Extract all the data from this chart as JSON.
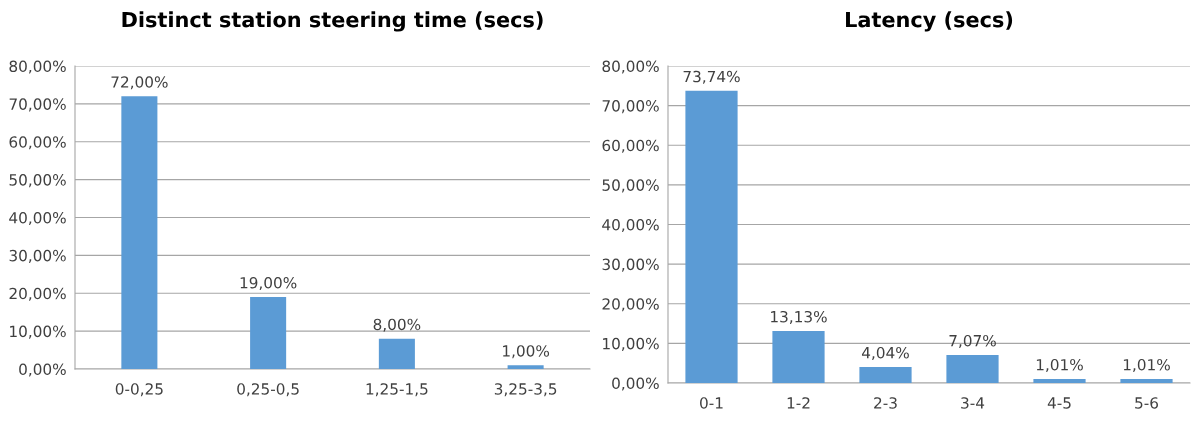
{
  "chart_data": [
    {
      "type": "bar",
      "title": "Distinct station steering time (secs)",
      "categories": [
        "0-0,25",
        "0,25-0,5",
        "1,25-1,5",
        "3,25-3,5"
      ],
      "values": [
        72,
        19,
        8,
        1
      ],
      "value_labels": [
        "72,00%",
        "19,00%",
        "8,00%",
        "1,00%"
      ],
      "color": "#5b9bd5",
      "ylim": [
        0,
        80
      ],
      "yticks": [
        {
          "value": 0,
          "label": "0,00%"
        },
        {
          "value": 10,
          "label": "10,00%"
        },
        {
          "value": 20,
          "label": "20,00%"
        },
        {
          "value": 30,
          "label": "30,00%"
        },
        {
          "value": 40,
          "label": "40,00%"
        },
        {
          "value": 50,
          "label": "50,00%"
        },
        {
          "value": 60,
          "label": "60,00%"
        },
        {
          "value": 70,
          "label": "70,00%"
        },
        {
          "value": 80,
          "label": "80,00%"
        }
      ],
      "grid": "y",
      "legend": false
    },
    {
      "type": "bar",
      "title": "Latency (secs)",
      "categories": [
        "0-1",
        "1-2",
        "2-3",
        "3-4",
        "4-5",
        "5-6"
      ],
      "values": [
        73.74,
        13.13,
        4.04,
        7.07,
        1.01,
        1.01
      ],
      "value_labels": [
        "73,74%",
        "13,13%",
        "4,04%",
        "7,07%",
        "1,01%",
        "1,01%"
      ],
      "color": "#5b9bd5",
      "ylim": [
        0,
        80
      ],
      "yticks": [
        {
          "value": 0,
          "label": "0,00%"
        },
        {
          "value": 10,
          "label": "10,00%"
        },
        {
          "value": 20,
          "label": "20,00%"
        },
        {
          "value": 30,
          "label": "30,00%"
        },
        {
          "value": 40,
          "label": "40,00%"
        },
        {
          "value": 50,
          "label": "50,00%"
        },
        {
          "value": 60,
          "label": "60,00%"
        },
        {
          "value": 70,
          "label": "70,00%"
        },
        {
          "value": 80,
          "label": "80,00%"
        }
      ],
      "grid": "y",
      "legend": false
    }
  ]
}
